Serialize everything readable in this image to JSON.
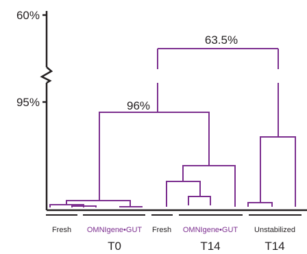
{
  "colors": {
    "tree": "#7b2d8e",
    "axis": "#231f20",
    "text": "#231f20"
  },
  "chart_data": {
    "type": "dendrogram",
    "title": "",
    "xlabel": "",
    "ylabel": "",
    "y_ticks": [
      {
        "label": "60%",
        "value": 60
      },
      {
        "label": "95%",
        "value": 95
      }
    ],
    "axis_break": true,
    "node_labels": [
      {
        "id": "root",
        "label": "63.5%",
        "value": 63.5
      },
      {
        "id": "main",
        "label": "96%",
        "value": 96
      }
    ],
    "groups": [
      {
        "label": "Fresh",
        "color": "text",
        "time": "T0"
      },
      {
        "label": "OMNIgene•GUT",
        "color": "tree",
        "time": "T0"
      },
      {
        "label": "Fresh",
        "color": "text",
        "time": "T14"
      },
      {
        "label": "OMNIgene•GUT",
        "color": "tree",
        "time": "T14"
      },
      {
        "label": "Unstabilized",
        "color": "text",
        "time": "T14"
      }
    ],
    "time_labels": [
      "T0",
      "T14",
      "T14"
    ]
  }
}
